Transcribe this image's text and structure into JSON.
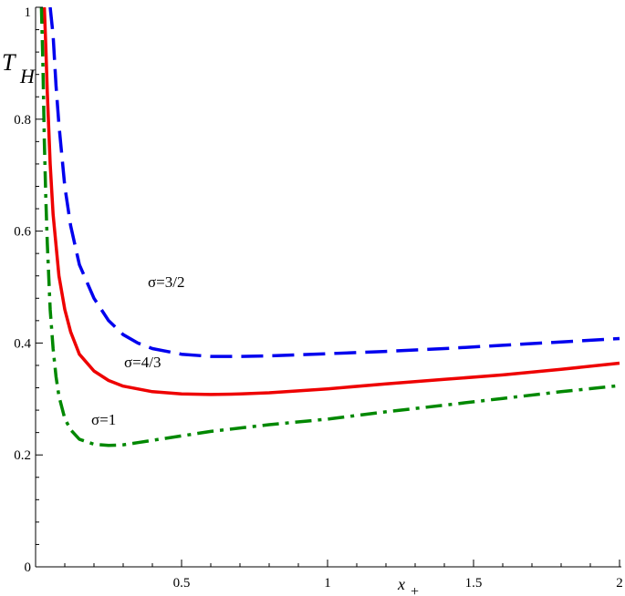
{
  "chart_data": {
    "type": "line",
    "xlabel": "x",
    "xlabel_sub": "+",
    "ylabel": "T",
    "ylabel_sub": "H",
    "xlim": [
      0,
      2
    ],
    "ylim": [
      0,
      1
    ],
    "x_ticks": [
      {
        "value": 0.5,
        "label": "0.5"
      },
      {
        "value": 1,
        "label": "1"
      },
      {
        "value": 1.5,
        "label": "1.5"
      },
      {
        "value": 2,
        "label": "2"
      }
    ],
    "y_ticks": [
      {
        "value": 0,
        "label": "0"
      },
      {
        "value": 0.2,
        "label": "0.2"
      },
      {
        "value": 0.4,
        "label": "0.4"
      },
      {
        "value": 0.6,
        "label": "0.6"
      },
      {
        "value": 0.8,
        "label": "0.8"
      },
      {
        "value": 1,
        "label": "1"
      }
    ],
    "grid": false,
    "series": [
      {
        "annotation": "σ=3/2",
        "color": "#0000ee",
        "dash": "dash",
        "x": [
          0.05,
          0.06,
          0.07,
          0.08,
          0.1,
          0.12,
          0.15,
          0.2,
          0.25,
          0.3,
          0.35,
          0.4,
          0.5,
          0.6,
          0.7,
          0.8,
          0.9,
          1.0,
          1.2,
          1.4,
          1.6,
          1.8,
          2.0
        ],
        "y": [
          1.0,
          0.95,
          0.86,
          0.79,
          0.68,
          0.61,
          0.54,
          0.48,
          0.44,
          0.415,
          0.4,
          0.39,
          0.38,
          0.376,
          0.376,
          0.377,
          0.379,
          0.381,
          0.385,
          0.39,
          0.396,
          0.402,
          0.408
        ]
      },
      {
        "annotation": "σ=4/3",
        "color": "#ee0000",
        "dash": "solid",
        "x": [
          0.03,
          0.035,
          0.04,
          0.05,
          0.06,
          0.08,
          0.1,
          0.12,
          0.15,
          0.2,
          0.25,
          0.3,
          0.4,
          0.5,
          0.6,
          0.7,
          0.8,
          1.0,
          1.2,
          1.4,
          1.6,
          1.8,
          2.0
        ],
        "y": [
          1.0,
          0.93,
          0.85,
          0.72,
          0.63,
          0.52,
          0.46,
          0.42,
          0.38,
          0.35,
          0.333,
          0.323,
          0.313,
          0.309,
          0.308,
          0.309,
          0.311,
          0.318,
          0.327,
          0.335,
          0.343,
          0.353,
          0.364
        ]
      },
      {
        "annotation": "σ=1",
        "color": "#008800",
        "dash": "dashdot",
        "x": [
          0.02,
          0.025,
          0.03,
          0.035,
          0.04,
          0.05,
          0.06,
          0.07,
          0.08,
          0.1,
          0.12,
          0.15,
          0.2,
          0.25,
          0.3,
          0.35,
          0.4,
          0.5,
          0.6,
          0.8,
          1.0,
          1.2,
          1.4,
          1.6,
          1.8,
          2.0
        ],
        "y": [
          1.0,
          0.9,
          0.76,
          0.66,
          0.58,
          0.46,
          0.39,
          0.34,
          0.305,
          0.265,
          0.245,
          0.228,
          0.219,
          0.217,
          0.218,
          0.222,
          0.226,
          0.234,
          0.242,
          0.254,
          0.264,
          0.277,
          0.289,
          0.301,
          0.313,
          0.324
        ]
      }
    ]
  }
}
